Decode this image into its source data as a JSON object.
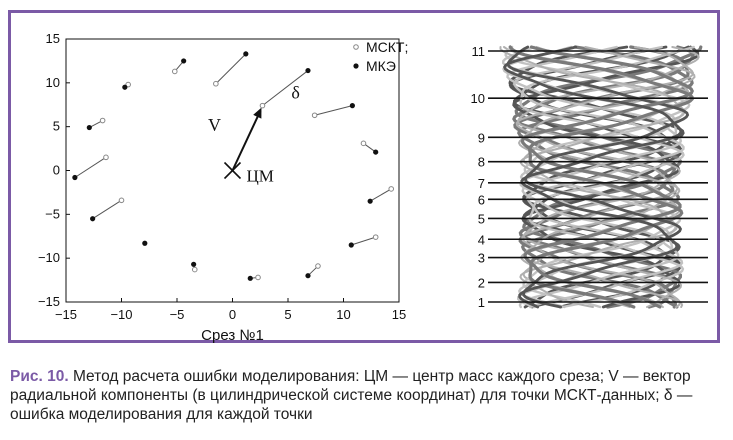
{
  "chart_data": [
    {
      "type": "scatter",
      "title": "",
      "xlabel": "Срез №1",
      "ylabel": "",
      "xlim": [
        -15,
        15
      ],
      "ylim": [
        -15,
        15
      ],
      "xticks": [
        -15,
        -10,
        -5,
        0,
        5,
        10,
        15
      ],
      "yticks": [
        -15,
        -10,
        -5,
        0,
        5,
        10,
        15
      ],
      "xtick_labels": [
        "−15",
        "−10",
        "−5",
        "0",
        "5",
        "10",
        "15"
      ],
      "ytick_labels": [
        "−15",
        "−10",
        "−5",
        "0",
        "5",
        "10",
        "15"
      ],
      "grid": false,
      "legend_position": "top-right",
      "series": [
        {
          "name": "МСКТ;",
          "marker": "open-circle",
          "color": "#888888",
          "points": [
            [
              -9.4,
              9.8
            ],
            [
              -5.2,
              11.3
            ],
            [
              -1.5,
              9.9
            ],
            [
              2.7,
              7.4
            ],
            [
              7.4,
              6.3
            ],
            [
              11.8,
              3.1
            ],
            [
              14.3,
              -2.1
            ],
            [
              12.9,
              -7.6
            ],
            [
              7.7,
              -10.9
            ],
            [
              2.3,
              -12.2
            ],
            [
              -3.4,
              -11.3
            ],
            [
              -10,
              -3.4
            ],
            [
              -11.4,
              1.5
            ],
            [
              -11.7,
              5.7
            ]
          ]
        },
        {
          "name": "МКЭ",
          "marker": "filled-circle",
          "color": "#111111",
          "points": [
            [
              -9.7,
              9.5
            ],
            [
              -4.4,
              12.5
            ],
            [
              1.2,
              13.3
            ],
            [
              6.8,
              11.4
            ],
            [
              10.8,
              7.4
            ],
            [
              12.9,
              2.1
            ],
            [
              12.4,
              -3.5
            ],
            [
              10.7,
              -8.5
            ],
            [
              6.8,
              -12
            ],
            [
              1.6,
              -12.3
            ],
            [
              -3.5,
              -10.7
            ],
            [
              -7.9,
              -8.3
            ],
            [
              -12.6,
              -5.5
            ],
            [
              -14.2,
              -0.8
            ],
            [
              -12.9,
              4.9
            ]
          ]
        }
      ],
      "pairs": [
        [
          [
            -9.4,
            9.8
          ],
          [
            -9.7,
            9.5
          ]
        ],
        [
          [
            -5.2,
            11.3
          ],
          [
            -4.4,
            12.5
          ]
        ],
        [
          [
            -1.5,
            9.9
          ],
          [
            1.2,
            13.3
          ]
        ],
        [
          [
            2.7,
            7.4
          ],
          [
            6.8,
            11.4
          ]
        ],
        [
          [
            7.4,
            6.3
          ],
          [
            10.8,
            7.4
          ]
        ],
        [
          [
            11.8,
            3.1
          ],
          [
            12.9,
            2.1
          ]
        ],
        [
          [
            14.3,
            -2.1
          ],
          [
            12.4,
            -3.5
          ]
        ],
        [
          [
            12.9,
            -7.6
          ],
          [
            10.7,
            -8.5
          ]
        ],
        [
          [
            7.7,
            -10.9
          ],
          [
            6.8,
            -12
          ]
        ],
        [
          [
            2.3,
            -12.2
          ],
          [
            1.6,
            -12.3
          ]
        ],
        [
          [
            -3.4,
            -11.3
          ],
          [
            -3.5,
            -10.7
          ]
        ],
        [
          [
            -10,
            -3.4
          ],
          [
            -12.6,
            -5.5
          ]
        ],
        [
          [
            -11.4,
            1.5
          ],
          [
            -14.2,
            -0.8
          ]
        ],
        [
          [
            -11.7,
            5.7
          ],
          [
            -12.9,
            4.9
          ]
        ]
      ],
      "center": [
        0,
        0
      ],
      "center_label": "ЦМ",
      "vector_label": "V",
      "vector_end": [
        2.7,
        7.4
      ],
      "delta_label": "δ",
      "delta_label_position": [
        5.3,
        8.2
      ]
    },
    {
      "type": "diagram",
      "title": "",
      "slice_labels": [
        "1",
        "2",
        "3",
        "4",
        "5",
        "6",
        "7",
        "8",
        "9",
        "10",
        "11"
      ],
      "slice_levels_norm": [
        0,
        0.078,
        0.177,
        0.25,
        0.333,
        0.409,
        0.475,
        0.559,
        0.656,
        0.812,
        1
      ]
    }
  ],
  "caption": {
    "label": "Рис. 10.",
    "text": " Метод расчета ошибки моделирования: ЦМ — центр масс каждого среза; V — вектор радиальной компоненты (в цилиндрической системе координат) для точки МСКТ-данных; δ — ошибка моделирования для каждой точки"
  }
}
